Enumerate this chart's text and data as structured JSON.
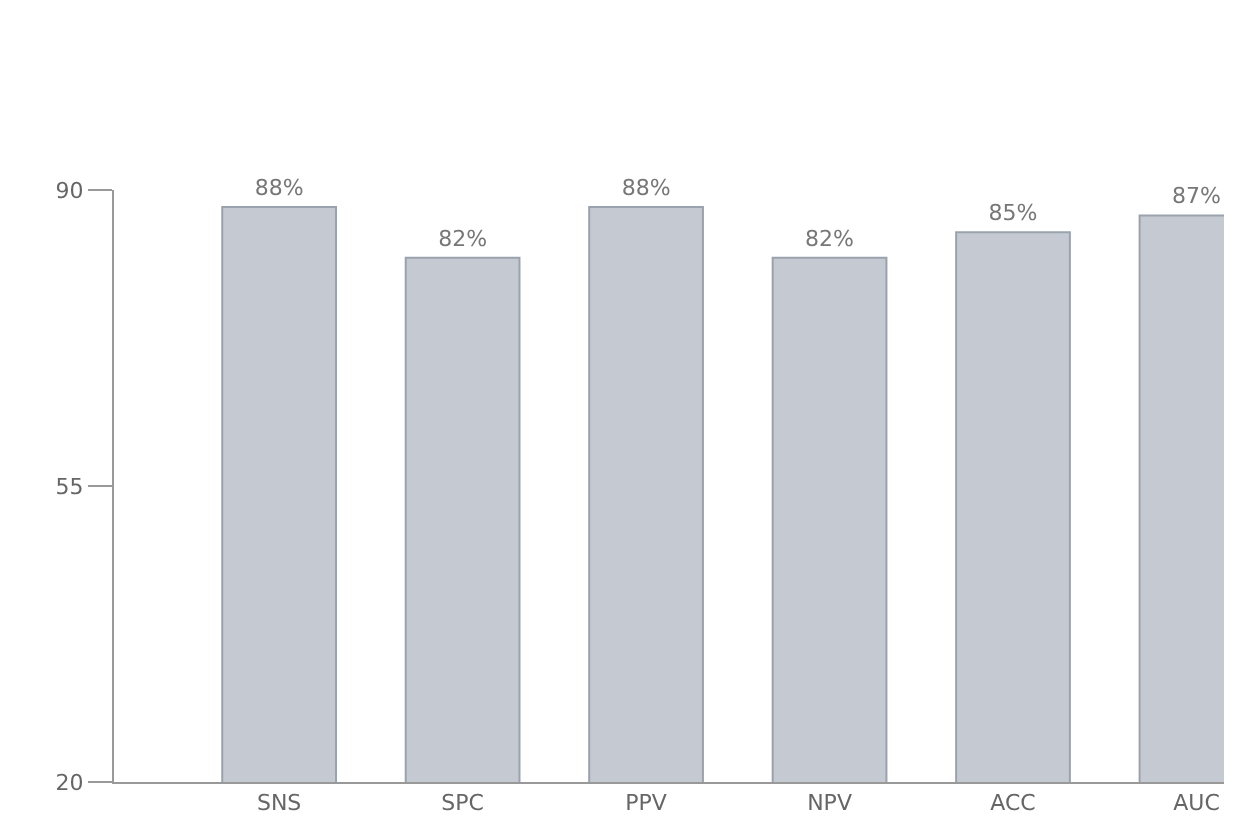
{
  "chart_data": {
    "type": "bar",
    "categories": [
      "SNS",
      "SPC",
      "PPV",
      "NPV",
      "ACC",
      "AUC"
    ],
    "values": [
      88,
      82,
      88,
      82,
      85,
      87
    ],
    "value_labels": [
      "88%",
      "82%",
      "88%",
      "82%",
      "85%",
      "87%"
    ],
    "color": "#c5cad2",
    "ylim": [
      20,
      90
    ],
    "yticks": [
      20,
      55,
      90
    ]
  }
}
